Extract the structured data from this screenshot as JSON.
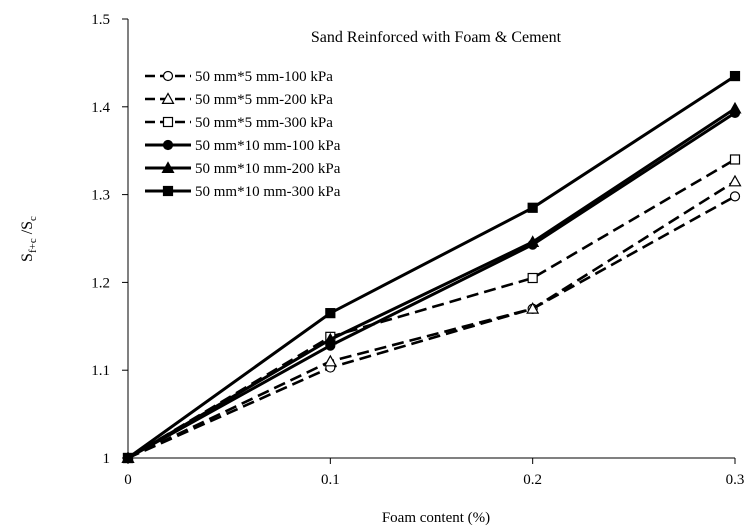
{
  "chart_data": {
    "type": "line",
    "title": "Sand Reinforced  with Foam & Cement",
    "xlabel": "Foam content  (%)",
    "ylabel": {
      "main": "S",
      "sub1": "f+c",
      "mid": " /S",
      "sub2": "c"
    },
    "x": [
      0,
      0.1,
      0.2,
      0.3
    ],
    "xlim": [
      0,
      0.3
    ],
    "ylim": [
      1,
      1.5
    ],
    "xticks": [
      {
        "value": 0,
        "label": "0"
      },
      {
        "value": 0.1,
        "label": "0.1"
      },
      {
        "value": 0.2,
        "label": "0.2"
      },
      {
        "value": 0.3,
        "label": "0.3"
      }
    ],
    "yticks": [
      {
        "value": 1,
        "label": "1"
      },
      {
        "value": 1.1,
        "label": "1.1"
      },
      {
        "value": 1.2,
        "label": "1.2"
      },
      {
        "value": 1.3,
        "label": "1.3"
      },
      {
        "value": 1.4,
        "label": "1.4"
      },
      {
        "value": 1.5,
        "label": "1.5"
      }
    ],
    "grid": false,
    "legend_position": "top-left",
    "series": [
      {
        "name": "50 mm*5 mm-100 kPa",
        "values": [
          1,
          1.103,
          1.17,
          1.298
        ],
        "marker": "circle",
        "filled": false,
        "dashed": true,
        "color": "#000000"
      },
      {
        "name": "50 mm*5 mm-200 kPa",
        "values": [
          1,
          1.11,
          1.17,
          1.315
        ],
        "marker": "triangle",
        "filled": false,
        "dashed": true,
        "color": "#000000"
      },
      {
        "name": "50 mm*5 mm-300 kPa",
        "values": [
          1,
          1.138,
          1.205,
          1.34
        ],
        "marker": "square",
        "filled": false,
        "dashed": true,
        "color": "#000000"
      },
      {
        "name": "50 mm*10 mm-100 kPa",
        "values": [
          1,
          1.128,
          1.243,
          1.393
        ],
        "marker": "circle",
        "filled": true,
        "dashed": false,
        "color": "#000000"
      },
      {
        "name": "50 mm*10 mm-200 kPa",
        "values": [
          1,
          1.135,
          1.246,
          1.398
        ],
        "marker": "triangle",
        "filled": true,
        "dashed": false,
        "color": "#000000"
      },
      {
        "name": "50 mm*10 mm-300 kPa",
        "values": [
          1,
          1.165,
          1.285,
          1.435
        ],
        "marker": "square",
        "filled": true,
        "dashed": false,
        "color": "#000000"
      }
    ]
  }
}
